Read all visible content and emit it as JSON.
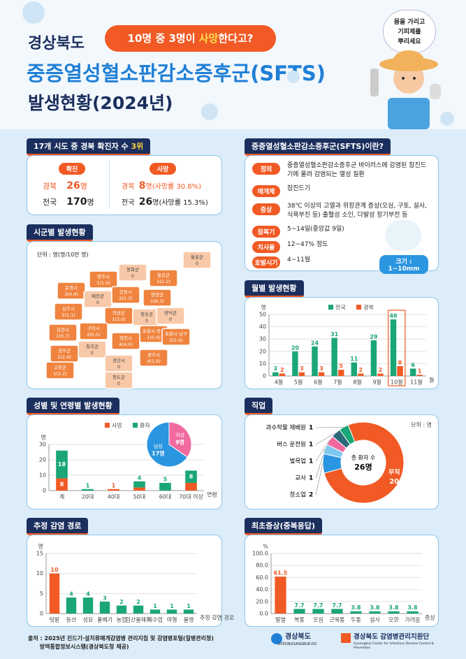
{
  "header": {
    "region": "경상북도",
    "bubble_pre": "10명 중 3명이 ",
    "bubble_em": "사망",
    "bubble_post": "한다고?",
    "title": "중증열성혈소판감소증후군(SFTS)",
    "subtitle": "발생현황(2024년)",
    "tip": [
      "몸을 가리고",
      "기피제를",
      "뿌리세요"
    ]
  },
  "summary": {
    "title": "17개 시도 중 경북 확진자 수 ",
    "rank": "3위",
    "confirmed": {
      "label": "확진",
      "rows": [
        {
          "area": "경북",
          "value": 26,
          "unit": "명"
        },
        {
          "area": "전국",
          "value": 170,
          "unit": "명"
        }
      ]
    },
    "deaths": {
      "label": "사망",
      "rows": [
        {
          "area": "경북",
          "value": 8,
          "unit": "명",
          "note": "(사망률 30.8%)"
        },
        {
          "area": "전국",
          "value": 26,
          "unit": "명",
          "note": "(사망률 15.3%)"
        }
      ]
    }
  },
  "info": {
    "title": "중증열성혈소판감소증후군(SFTS)이란?",
    "rows": [
      {
        "label": "정의",
        "text": "중증열성혈소판감소증후군 바이러스에 감염된 참진드기에 물려 감염되는 열성 질환"
      },
      {
        "label": "매개체",
        "text": "참진드기"
      },
      {
        "label": "증상",
        "text": "38℃ 이상의 고열과 위장관계 증상(오심, 구토, 설사, 식욕부진 등) 출혈성 소인, 다발성 장기부전 등"
      },
      {
        "label": "잠복기",
        "text": "5~14일(중앙값 9일)"
      },
      {
        "label": "치사율",
        "text": "12~47% 정도"
      },
      {
        "label": "호발시기",
        "text": "4~11월"
      }
    ],
    "size": "크기 : 1~10mm"
  },
  "map": {
    "title": "시군별 발생현황",
    "unit": "단위 : 명(명/10만 명)",
    "regions": [
      {
        "name": "봉화군",
        "value": 0,
        "label": "0"
      },
      {
        "name": "영주시",
        "value": 1,
        "label": "1(1.0)"
      },
      {
        "name": "울진군",
        "value": 1,
        "label": "1(2.2)"
      },
      {
        "name": "문경시",
        "value": 3,
        "label": "3(4.4)"
      },
      {
        "name": "예천군",
        "value": 0,
        "label": "0"
      },
      {
        "name": "안동시",
        "value": 2,
        "label": "2(1.3)"
      },
      {
        "name": "영양군",
        "value": 1,
        "label": "1(6.3)"
      },
      {
        "name": "상주시",
        "value": 1,
        "label": "1(1.1)"
      },
      {
        "name": "의성군",
        "value": 1,
        "label": "1(2.0)"
      },
      {
        "name": "청송군",
        "value": 0,
        "label": "0"
      },
      {
        "name": "영덕군",
        "value": 0,
        "label": "0"
      },
      {
        "name": "구미시",
        "value": 2,
        "label": "2(0.5)"
      },
      {
        "name": "김천시",
        "value": 1,
        "label": "1(0.7)"
      },
      {
        "name": "칠곡군",
        "value": 0,
        "label": "0"
      },
      {
        "name": "포항시 북구",
        "value": 1,
        "label": "1(0.4)"
      },
      {
        "name": "성주군",
        "value": 1,
        "label": "1(2.4)"
      },
      {
        "name": "영천시",
        "value": 4,
        "label": "4(4.0)"
      },
      {
        "name": "고령군",
        "value": 1,
        "label": "1(3.2)"
      },
      {
        "name": "경산시",
        "value": 0,
        "label": "0"
      },
      {
        "name": "청도군",
        "value": 0,
        "label": "0"
      },
      {
        "name": "경주시",
        "value": 4,
        "label": "4(1.6)"
      },
      {
        "name": "포항시 남구",
        "value": 2,
        "label": "2(1.0)"
      },
      {
        "name": "울릉군",
        "value": 0,
        "label": "0"
      }
    ]
  },
  "chart_data": [
    {
      "type": "bar",
      "title": "월별 발생현황",
      "categories": [
        "4월",
        "5월",
        "6월",
        "7월",
        "8월",
        "9월",
        "10월",
        "11월"
      ],
      "series": [
        {
          "name": "전국",
          "color": "#1aa676",
          "values": [
            3,
            20,
            24,
            31,
            11,
            29,
            46,
            6
          ]
        },
        {
          "name": "경북",
          "color": "#f15a24",
          "values": [
            2,
            3,
            3,
            5,
            2,
            2,
            8,
            1
          ]
        }
      ],
      "ylim": [
        0,
        50
      ],
      "yticks": [
        0,
        10,
        20,
        30,
        40,
        50
      ],
      "grid": true,
      "y_unit": "명",
      "x_unit": "월"
    },
    {
      "type": "stacked_bar",
      "title": "성별 및 연령별 발생현황",
      "categories": [
        "계",
        "20대",
        "40대",
        "50대",
        "60대",
        "70대 이상"
      ],
      "series": [
        {
          "name": "사망",
          "color": "#f15a24",
          "values": [
            8,
            null,
            1,
            2,
            null,
            5
          ]
        },
        {
          "name": "환자",
          "color": "#1aa676",
          "values": [
            18,
            1,
            null,
            4,
            5,
            8
          ]
        }
      ],
      "ylim": [
        0,
        30
      ],
      "yticks": [
        0,
        10,
        20,
        30
      ],
      "grid": true,
      "y_unit": "명",
      "x_unit": "연령"
    },
    {
      "type": "pie",
      "categories": [
        "남성",
        "여성"
      ],
      "values": [
        17,
        9
      ],
      "value_labels": [
        "17명",
        "9명"
      ],
      "colors": [
        "#2a95e0",
        "#f06aa0"
      ]
    },
    {
      "type": "donut",
      "title": "직업",
      "unit": "단위 : 명",
      "center_label": "총 환자 수",
      "total": 26,
      "total_label": "26명",
      "categories": [
        "과수작물 재배원",
        "버스 운전원",
        "벌목업",
        "교사",
        "청소업",
        "무직"
      ],
      "values": [
        1,
        1,
        1,
        1,
        2,
        20
      ],
      "colors": [
        "#1aa676",
        "#2b6b7a",
        "#f06aa0",
        "#7ec8f0",
        "#2a95e0",
        "#f15a24"
      ]
    },
    {
      "type": "bar",
      "title": "추정 감염 경로",
      "categories": [
        "텃밭",
        "등산",
        "성묘",
        "풀베기",
        "농업",
        "임산물채취",
        "지수업",
        "여행",
        "불명"
      ],
      "values": [
        10,
        4,
        4,
        3,
        2,
        2,
        1,
        1,
        1
      ],
      "colors": [
        "#f15a24",
        "#1aa676",
        "#1aa676",
        "#1aa676",
        "#1aa676",
        "#1aa676",
        "#1aa676",
        "#1aa676",
        "#1aa676"
      ],
      "ylim": [
        0,
        15
      ],
      "yticks": [
        0,
        5,
        10,
        15
      ],
      "grid": true,
      "y_unit": "명",
      "x_unit": "추정 감염 경로"
    },
    {
      "type": "bar",
      "title": "최초증상(중복응답)",
      "categories": [
        "발열",
        "복통",
        "오심",
        "근육통",
        "두통",
        "설사",
        "오한",
        "가려움"
      ],
      "values": [
        61.5,
        7.7,
        7.7,
        7.7,
        3.8,
        3.8,
        3.8,
        3.8
      ],
      "colors": [
        "#f15a24",
        "#1aa676",
        "#1aa676",
        "#1aa676",
        "#1aa676",
        "#1aa676",
        "#1aa676",
        "#1aa676"
      ],
      "ylim": [
        0,
        100
      ],
      "yticks": [
        {
          "value": 0,
          "label": "0.0"
        },
        {
          "value": 20,
          "label": "20.0"
        },
        {
          "value": 40,
          "label": "40.0"
        },
        {
          "value": 60,
          "label": "60.0"
        },
        {
          "value": 80,
          "label": "80.0"
        },
        {
          "value": 100,
          "label": "100.0"
        }
      ],
      "grid": true,
      "y_unit": "%",
      "x_unit": "증상"
    }
  ],
  "footer": {
    "source_label": "출처 :",
    "source": [
      "2025년 진드기·설치류매개감염병 관리지침 및 감염병포털(질병관리청)",
      "방역통합정보시스템(경상북도청 제공)"
    ],
    "logo1": "경상북도",
    "logo1_en": "GYEONGSANGBUK-DO",
    "logo2": "경상북도 감염병관리지원단",
    "logo2_en": "Gyeongbuk Center for Infectious Disease Control & Prevention"
  }
}
